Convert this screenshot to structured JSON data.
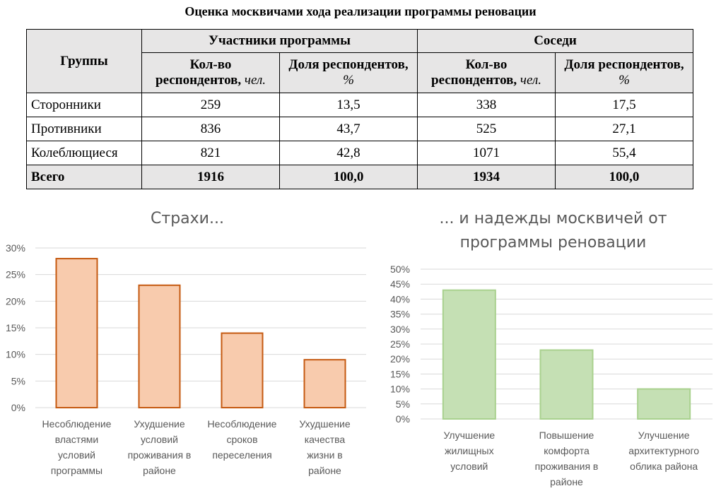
{
  "title": "Оценка москвичами хода реализации программы реновации",
  "table": {
    "groups_header": "Группы",
    "participants_header": "Участники программы",
    "neighbors_header": "Соседи",
    "count_header": "Кол-во респондентов,",
    "count_unit": "чел.",
    "share_header": "Доля респондентов,",
    "share_unit": "%",
    "rows": [
      {
        "label": "Сторонники",
        "p_count": "259",
        "p_share": "13,5",
        "n_count": "338",
        "n_share": "17,5"
      },
      {
        "label": "Противники",
        "p_count": "836",
        "p_share": "43,7",
        "n_count": "525",
        "n_share": "27,1"
      },
      {
        "label": "Колеблющиеся",
        "p_count": "821",
        "p_share": "42,8",
        "n_count": "1071",
        "n_share": "55,4"
      }
    ],
    "total": {
      "label": "Всего",
      "p_count": "1916",
      "p_share": "100,0",
      "n_count": "1934",
      "n_share": "100,0"
    }
  },
  "chart_data": [
    {
      "type": "bar",
      "title": "Страхи...",
      "categories": [
        [
          "Несоблюдение",
          "властями",
          "условий",
          "программы"
        ],
        [
          "Ухудшение",
          "условий",
          "проживания в",
          "районе"
        ],
        [
          "Несоблюдение",
          "сроков",
          "переселения"
        ],
        [
          "Ухудшение",
          "качества",
          "жизни в",
          "районе"
        ]
      ],
      "values": [
        28,
        23,
        14,
        9
      ],
      "ylim": [
        0,
        30
      ],
      "ticks": [
        "0%",
        "5%",
        "10%",
        "15%",
        "20%",
        "25%",
        "30%"
      ],
      "grid": true,
      "fill": "#f8cbad",
      "stroke": "#c55a11"
    },
    {
      "type": "bar",
      "title": "... и надежды москвичей от программы реновации",
      "title_lines": [
        "... и надежды москвичей от",
        "программы реновации"
      ],
      "categories": [
        [
          "Улучшение",
          "жилищных",
          "условий"
        ],
        [
          "Повышение",
          "комфорта",
          "проживания в",
          "районе"
        ],
        [
          "Улучшение",
          "архитектурного",
          "облика района"
        ]
      ],
      "values": [
        43,
        23,
        10
      ],
      "ylim": [
        0,
        50
      ],
      "ticks": [
        "0%",
        "5%",
        "10%",
        "15%",
        "20%",
        "25%",
        "30%",
        "35%",
        "40%",
        "45%",
        "50%"
      ],
      "grid": true,
      "fill": "#c5e0b4",
      "stroke": "#a9d18e"
    }
  ]
}
